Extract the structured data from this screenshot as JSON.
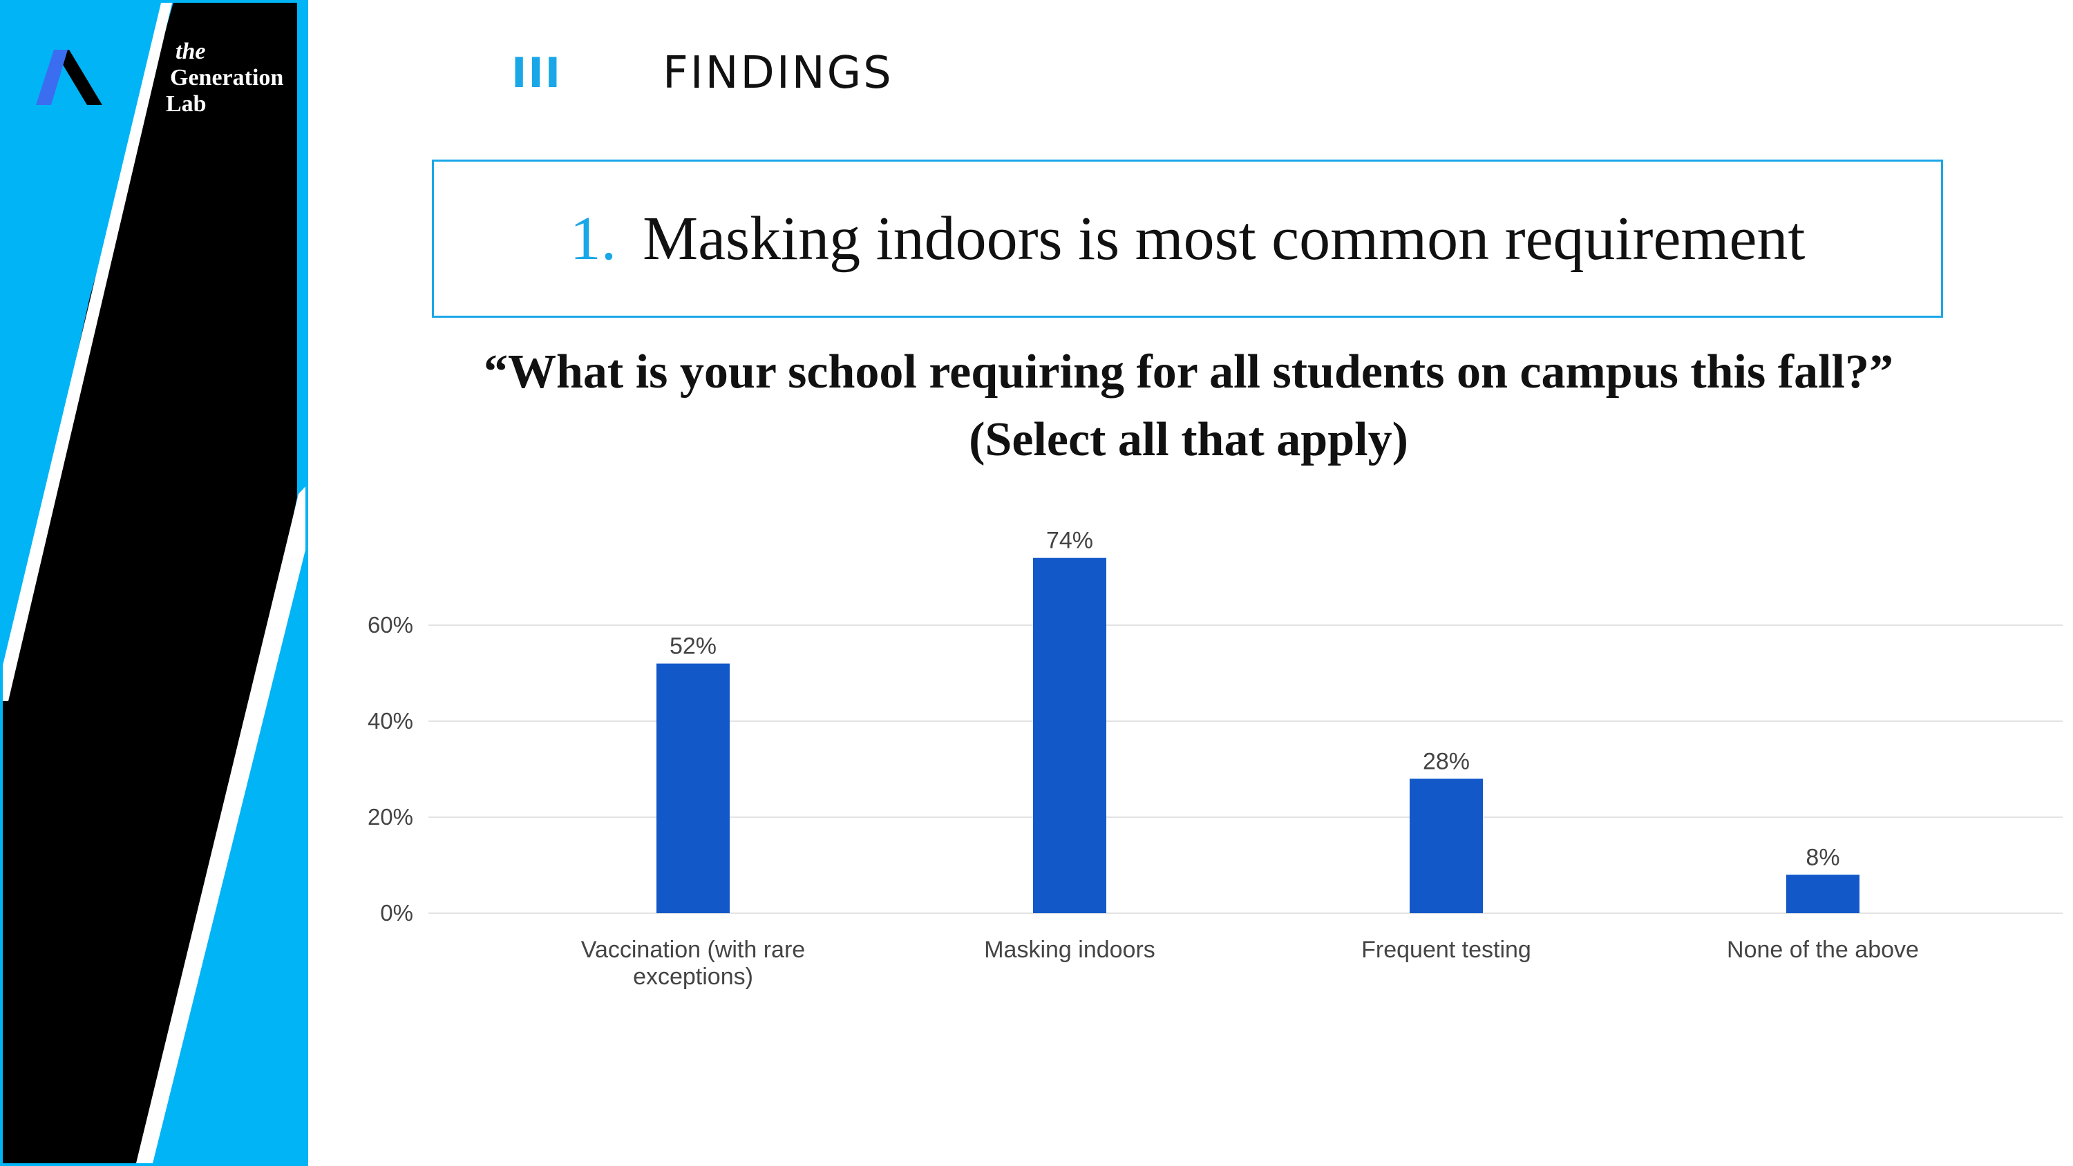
{
  "brand": {
    "line1": "the",
    "line2": "Generation",
    "line3": "Lab",
    "logo_icon": "lambda-mark-icon",
    "colors": {
      "panel": "#00b4f5",
      "stripe": "#000000",
      "mark": "#3b6df0"
    }
  },
  "section": {
    "number": "III",
    "title": "FINDINGS"
  },
  "headline": {
    "number": "1.",
    "text": "Masking indoors is most common requirement"
  },
  "question": {
    "line1": "“What is your school requiring for all students on campus this fall?”",
    "line2": "(Select all that apply)"
  },
  "accent_color": "#1aa7e8",
  "chart_data": {
    "type": "bar",
    "categories": [
      [
        "Vaccination (with rare",
        "exceptions)"
      ],
      [
        "Masking indoors"
      ],
      [
        "Frequent testing"
      ],
      [
        "None of the above"
      ]
    ],
    "values": [
      52,
      74,
      28,
      8
    ],
    "data_labels": [
      "52%",
      "74%",
      "28%",
      "8%"
    ],
    "y_ticks": [
      {
        "value": 0,
        "label": "0%"
      },
      {
        "value": 20,
        "label": "20%"
      },
      {
        "value": 40,
        "label": "40%"
      },
      {
        "value": 60,
        "label": "60%"
      }
    ],
    "ylim": [
      0,
      75
    ],
    "grid": true,
    "bar_color": "#1258c9",
    "title": "",
    "xlabel": "",
    "ylabel": ""
  }
}
